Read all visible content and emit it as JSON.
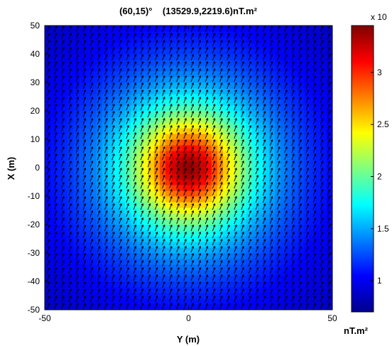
{
  "chart_data": {
    "type": "heatmap",
    "title": "(60,15)°    (13529.9,2219.6)nT.m²",
    "xlabel": "Y (m)",
    "ylabel": "X (m)",
    "xlim": [
      -50,
      50
    ],
    "ylim": [
      -50,
      50
    ],
    "x_ticks": [
      "-50",
      "0",
      "50"
    ],
    "y_ticks": [
      "50",
      "40",
      "30",
      "20",
      "10",
      "0",
      "-10",
      "-20",
      "-30",
      "-40",
      "-50"
    ],
    "peak": {
      "x": 0,
      "y": 0,
      "value": 3.45
    },
    "colorbar": {
      "label": "nT.m²",
      "exponent_label": "x 10",
      "range": [
        0.7,
        3.45
      ],
      "ticks": [
        "3",
        "2.5",
        "2",
        "1.5",
        "1"
      ],
      "colormap": "jet"
    },
    "vector_field": {
      "description_shown": "black arrows on a regular grid",
      "dominant_direction": "up-right"
    },
    "grid": false
  }
}
